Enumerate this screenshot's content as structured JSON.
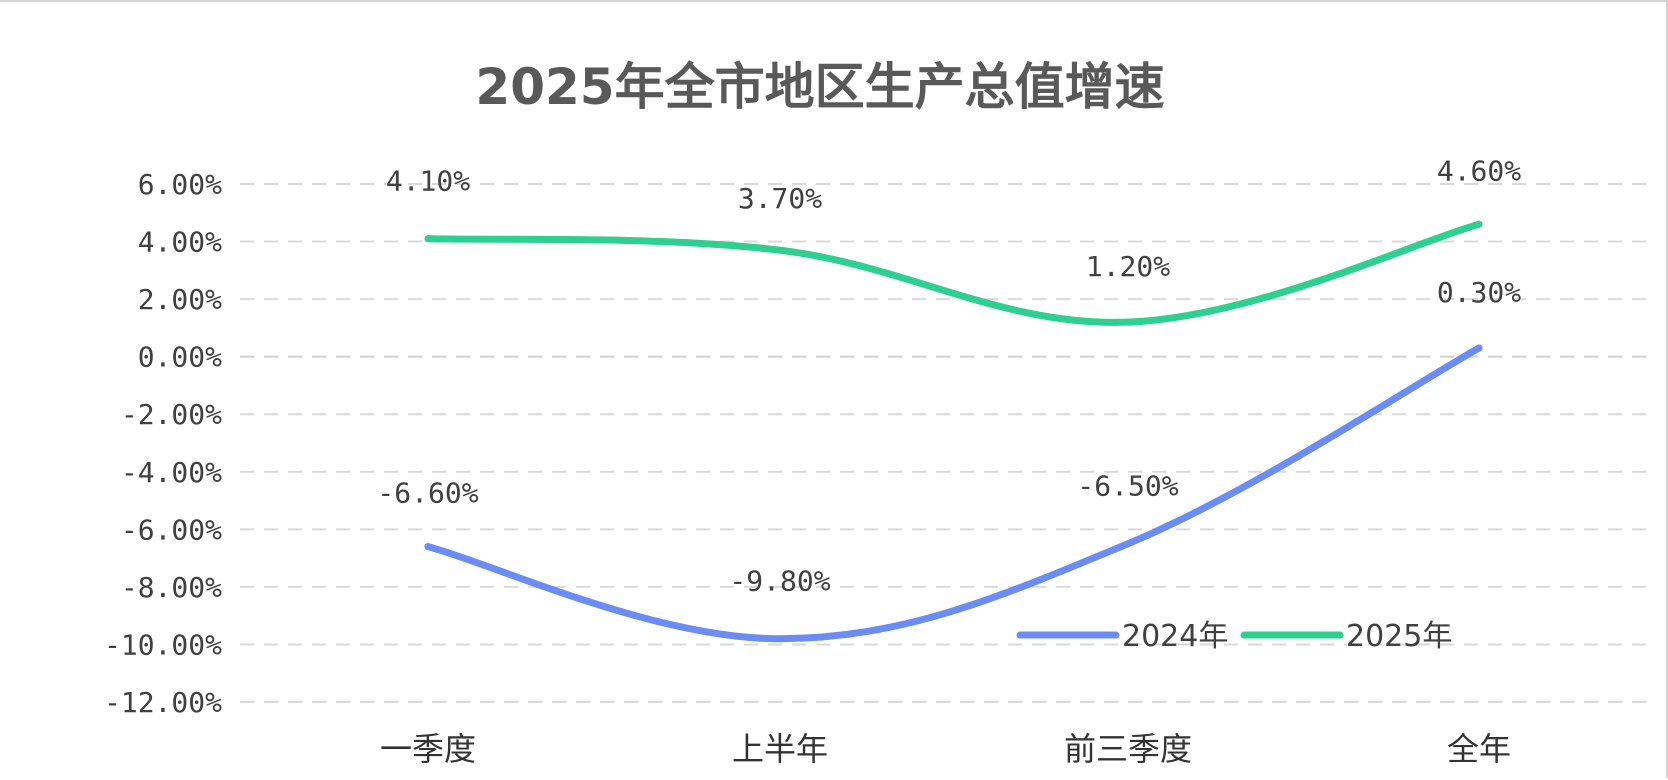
{
  "chart_data": {
    "type": "line",
    "title": "2025年全市地区生产总值增速",
    "categories": [
      "一季度",
      "上半年",
      "前三季度",
      "全年"
    ],
    "series": [
      {
        "name": "2024年",
        "values": [
          -6.6,
          -9.8,
          -6.5,
          0.3
        ],
        "labels": [
          "-6.60%",
          "-9.80%",
          "-6.50%",
          "0.30%"
        ],
        "color": "#6b8cf2"
      },
      {
        "name": "2025年",
        "values": [
          4.1,
          3.7,
          1.2,
          4.6
        ],
        "labels": [
          "4.10%",
          "3.70%",
          "1.20%",
          "4.60%"
        ],
        "color": "#2ecf90"
      }
    ],
    "ylim": [
      -12,
      6
    ],
    "yticks": [
      6,
      4,
      2,
      0,
      -2,
      -4,
      -6,
      -8,
      -10,
      -12
    ],
    "ytick_labels": [
      "6.00%",
      "4.00%",
      "2.00%",
      "0.00%",
      "-2.00%",
      "-4.00%",
      "-6.00%",
      "-8.00%",
      "-10.00%",
      "-12.00%"
    ],
    "grid": true,
    "grid_style": "dashed",
    "smooth": true,
    "legend_position": "lower-right",
    "xlabel": "",
    "ylabel": ""
  }
}
